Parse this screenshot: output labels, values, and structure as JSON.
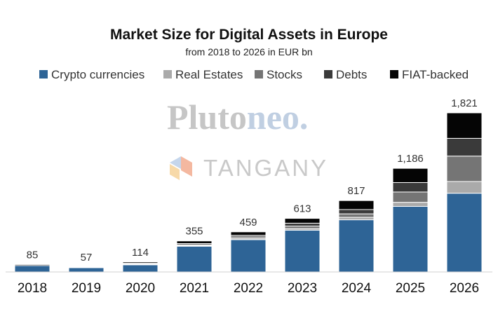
{
  "chart_data": {
    "type": "bar",
    "stacked": true,
    "title": "Market Size for Digital Assets in Europe",
    "subtitle": "from 2018 to 2026 in EUR bn",
    "categories": [
      "2018",
      "2019",
      "2020",
      "2021",
      "2022",
      "2023",
      "2024",
      "2025",
      "2026"
    ],
    "totals": [
      85,
      57,
      114,
      355,
      459,
      613,
      817,
      1186,
      1821
    ],
    "total_labels": [
      "85",
      "57",
      "114",
      "355",
      "459",
      "613",
      "817",
      "1,186",
      "1,821"
    ],
    "series": [
      {
        "name": "Crypto currencies",
        "color": "#2e6496",
        "values": [
          73,
          49,
          82,
          295,
          370,
          478,
          597,
          750,
          901
        ]
      },
      {
        "name": "Real Estates",
        "color": "#aaaaaa",
        "values": [
          0,
          0,
          4,
          6,
          11,
          18,
          28,
          47,
          134
        ]
      },
      {
        "name": "Stocks",
        "color": "#757575",
        "values": [
          0,
          0,
          5,
          10,
          19,
          29,
          40,
          118,
          291
        ]
      },
      {
        "name": "Debts",
        "color": "#3a3a3a",
        "values": [
          0,
          0,
          8,
          14,
          19,
          33,
          49,
          108,
          203
        ]
      },
      {
        "name": "FIAT-backed",
        "color": "#050505",
        "values": [
          12,
          8,
          15,
          30,
          40,
          55,
          103,
          163,
          292
        ]
      }
    ],
    "ylim": [
      0,
      1900
    ],
    "grid": false,
    "legend_position": "top"
  },
  "watermarks": {
    "pluto_part1": "Pluto",
    "pluto_part2": "neo.",
    "tangany": "TANGANY",
    "tangany_logo_icon": "tangany-cube-icon"
  }
}
